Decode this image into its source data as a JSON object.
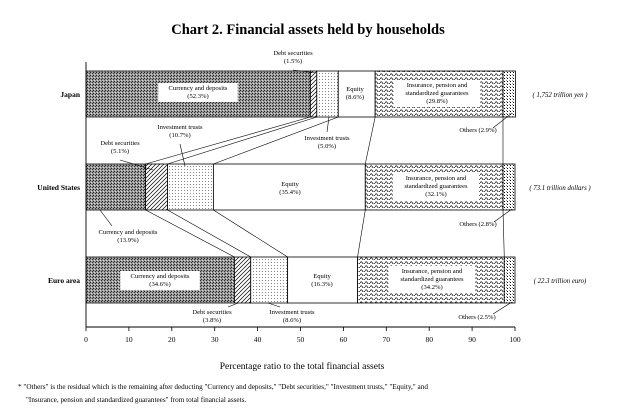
{
  "chart_data": {
    "type": "bar",
    "stacked": true,
    "orientation": "horizontal",
    "title": "Chart 2. Financial assets held by households",
    "xlabel": "Percentage ratio to the total financial assets",
    "xlim": [
      0,
      100
    ],
    "xticks": [
      "0",
      "10",
      "20",
      "30",
      "40",
      "50",
      "60",
      "70",
      "80",
      "90",
      "100"
    ],
    "categories": [
      "Japan",
      "United States",
      "Euro area"
    ],
    "totals": [
      "( 1,752 trillion yen )",
      "( 73.1 trillion dollars )",
      "( 22.3 trillion euro)"
    ],
    "series": [
      {
        "name": "Currency and deposits",
        "values": [
          52.3,
          13.9,
          34.6
        ],
        "labels": [
          [
            "Currency and deposits",
            "(52.3%)"
          ],
          [
            "Currency and deposits",
            "(13.9%)"
          ],
          [
            "Currency and deposits",
            "(34.6%)"
          ]
        ]
      },
      {
        "name": "Debt securities",
        "values": [
          1.5,
          5.1,
          3.8
        ],
        "labels": [
          [
            "Debt securities",
            "(1.5%)"
          ],
          [
            "Debt securities",
            "(5.1%)"
          ],
          [
            "Debt securities",
            "(3.8%)"
          ]
        ]
      },
      {
        "name": "Investment trusts",
        "values": [
          5.0,
          10.7,
          8.6
        ],
        "labels": [
          [
            "Investment trusts",
            "(5.0%)"
          ],
          [
            "Investment trusts",
            "(10.7%)"
          ],
          [
            "Investment trusts",
            "(8.6%)"
          ]
        ]
      },
      {
        "name": "Equity",
        "values": [
          8.6,
          35.4,
          16.3
        ],
        "labels": [
          [
            "Equity",
            "(8.6%)"
          ],
          [
            "Equity",
            "(35.4%)"
          ],
          [
            "Equity",
            "(16.3%)"
          ]
        ]
      },
      {
        "name": "Insurance, pension and standardized guarantees",
        "values": [
          29.8,
          32.1,
          34.2
        ],
        "labels": [
          [
            "Insurance, pension and",
            "standardized guarantees",
            "(29.8%)"
          ],
          [
            "Insurance, pension and",
            "standardized guarantees",
            "(32.1%)"
          ],
          [
            "Insurance, pension and",
            "standardized guarantees",
            "(34.2%)"
          ]
        ]
      },
      {
        "name": "Others",
        "values": [
          2.9,
          2.8,
          2.5
        ],
        "labels": [
          [
            "Others (2.9%)"
          ],
          [
            "Others (2.8%)"
          ],
          [
            "Others (2.5%)"
          ]
        ]
      }
    ],
    "footnote": [
      "* \"Others\" is the residual which is the remaining after deducting \"Currency and deposits,\" \"Debt securities,\" \"Investment trusts,\" \"Equity,\" and",
      "\"Insurance, pension and standardized guarantees\" from total financial assets."
    ]
  }
}
